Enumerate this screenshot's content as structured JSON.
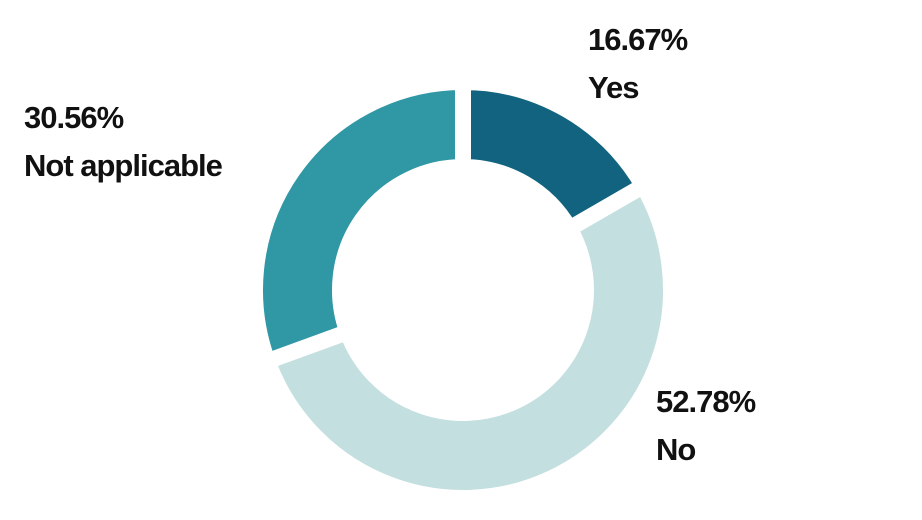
{
  "chart_data": {
    "type": "donut",
    "categories": [
      "Yes",
      "No",
      "Not applicable"
    ],
    "values": [
      16.67,
      52.78,
      30.56
    ],
    "value_labels": [
      "16.67%",
      "52.78%",
      "30.56%"
    ],
    "colors": [
      "#12637f",
      "#c3dfe0",
      "#3097a5"
    ]
  }
}
